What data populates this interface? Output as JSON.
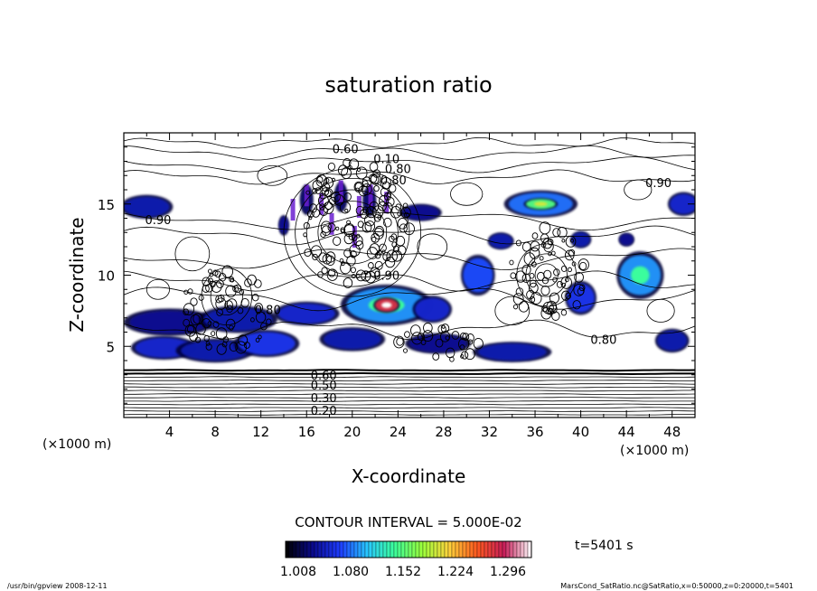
{
  "chart_data": {
    "type": "heatmap",
    "title": "saturation ratio",
    "xlabel": "X-coordinate",
    "ylabel": "Z-coordinate",
    "x_unit": "(×1000 m)",
    "y_unit": "(×1000 m)",
    "xlim": [
      0,
      50
    ],
    "ylim": [
      0,
      20
    ],
    "x_ticks": [
      4,
      8,
      12,
      16,
      20,
      24,
      28,
      32,
      36,
      40,
      44,
      48
    ],
    "y_ticks": [
      5,
      10,
      15
    ],
    "contour_interval_text": "CONTOUR INTERVAL = 5.000E-02",
    "colorbar": {
      "tick_labels": [
        "1.008",
        "1.080",
        "1.152",
        "1.224",
        "1.296"
      ],
      "colors": [
        "#000000",
        "#0a0a8c",
        "#1e3cff",
        "#28c8ff",
        "#3cff9a",
        "#9aff3c",
        "#ffd23c",
        "#ff5a1e",
        "#c81e5a",
        "#ffffff"
      ]
    },
    "time_label": "t=5401 s",
    "contour_labels": [
      {
        "text": "0.60",
        "x": 19.4,
        "z": 18.9
      },
      {
        "text": "0.10",
        "x": 23.0,
        "z": 18.2
      },
      {
        "text": "0.80",
        "x": 24.0,
        "z": 17.5
      },
      {
        "text": "0.80",
        "x": 23.6,
        "z": 16.7
      },
      {
        "text": "0.90",
        "x": 46.8,
        "z": 16.5
      },
      {
        "text": "0.90",
        "x": 3.0,
        "z": 13.9
      },
      {
        "text": "0.90",
        "x": 23.0,
        "z": 10.0
      },
      {
        "text": "0.80",
        "x": 12.6,
        "z": 7.6
      },
      {
        "text": "0.80",
        "x": 42.0,
        "z": 5.5
      },
      {
        "text": "0.20",
        "x": 17.5,
        "z": 0.5
      },
      {
        "text": "0.30",
        "x": 17.5,
        "z": 1.4
      },
      {
        "text": "0.50",
        "x": 17.5,
        "z": 2.3
      },
      {
        "text": "0.60",
        "x": 17.5,
        "z": 3.0
      }
    ],
    "regions": [
      {
        "x": 3.5,
        "z": 4.9,
        "rx": 2.5,
        "rz": 0.7,
        "v": 1.06
      },
      {
        "x": 8.0,
        "z": 4.7,
        "rx": 3.0,
        "rz": 0.7,
        "v": 1.05
      },
      {
        "x": 12.5,
        "z": 5.2,
        "rx": 2.5,
        "rz": 0.8,
        "v": 1.07
      },
      {
        "x": 20.0,
        "z": 5.5,
        "rx": 2.5,
        "rz": 0.7,
        "v": 1.05
      },
      {
        "x": 27.5,
        "z": 5.2,
        "rx": 2.5,
        "rz": 0.6,
        "v": 1.04
      },
      {
        "x": 34.0,
        "z": 4.6,
        "rx": 3.0,
        "rz": 0.6,
        "v": 1.05
      },
      {
        "x": 4.0,
        "z": 6.7,
        "rx": 3.5,
        "rz": 0.8,
        "v": 1.04
      },
      {
        "x": 10.0,
        "z": 6.9,
        "rx": 3.0,
        "rz": 0.8,
        "v": 1.05
      },
      {
        "x": 16.0,
        "z": 7.3,
        "rx": 2.5,
        "rz": 0.7,
        "v": 1.06
      },
      {
        "x": 23.0,
        "z": 7.9,
        "rx": 3.5,
        "rz": 1.2,
        "v": 1.1
      },
      {
        "x": 23.0,
        "z": 7.9,
        "rx": 1.0,
        "rz": 0.45,
        "v": 1.29
      },
      {
        "x": 27.0,
        "z": 7.6,
        "rx": 1.5,
        "rz": 0.8,
        "v": 1.06
      },
      {
        "x": 31.0,
        "z": 10.0,
        "rx": 1.3,
        "rz": 1.2,
        "v": 1.08
      },
      {
        "x": 45.2,
        "z": 10.0,
        "rx": 1.8,
        "rz": 1.4,
        "v": 1.1
      },
      {
        "x": 40.0,
        "z": 8.4,
        "rx": 1.2,
        "rz": 1.0,
        "v": 1.07
      },
      {
        "x": 48.0,
        "z": 5.4,
        "rx": 1.3,
        "rz": 0.7,
        "v": 1.05
      },
      {
        "x": 36.5,
        "z": 15.0,
        "rx": 2.8,
        "rz": 0.8,
        "v": 1.09
      },
      {
        "x": 36.5,
        "z": 15.0,
        "rx": 1.3,
        "rz": 0.35,
        "v": 1.16
      },
      {
        "x": 26.0,
        "z": 14.4,
        "rx": 1.6,
        "rz": 0.5,
        "v": 1.04
      },
      {
        "x": 2.0,
        "z": 14.8,
        "rx": 2.0,
        "rz": 0.7,
        "v": 1.05
      },
      {
        "x": 49.0,
        "z": 15.0,
        "rx": 1.2,
        "rz": 0.7,
        "v": 1.06
      },
      {
        "x": 33.0,
        "z": 12.4,
        "rx": 1.0,
        "rz": 0.5,
        "v": 1.05
      },
      {
        "x": 40.0,
        "z": 12.5,
        "rx": 0.8,
        "rz": 0.5,
        "v": 1.05
      },
      {
        "x": 44.0,
        "z": 12.5,
        "rx": 0.6,
        "rz": 0.4,
        "v": 1.04
      },
      {
        "x": 16.0,
        "z": 15.3,
        "rx": 0.5,
        "rz": 0.9,
        "v": 1.03
      },
      {
        "x": 19.0,
        "z": 15.5,
        "rx": 0.5,
        "rz": 0.9,
        "v": 1.03
      },
      {
        "x": 21.5,
        "z": 15.2,
        "rx": 0.5,
        "rz": 0.9,
        "v": 1.03
      },
      {
        "x": 14.0,
        "z": 13.5,
        "rx": 0.4,
        "rz": 0.6,
        "v": 1.04
      }
    ],
    "grid": false,
    "legend": "bottom colorbar"
  },
  "footer": {
    "left": "/usr/bin/gpview   2008-12-11",
    "right": "MarsCond_SatRatio.nc@SatRatio,x=0:50000,z=0:20000,t=5401"
  }
}
